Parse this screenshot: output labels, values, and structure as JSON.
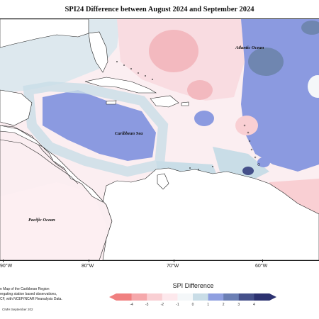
{
  "title": "SPI24 Difference between August 2024 and September 2024",
  "ocean_labels": {
    "atlantic": "Atlantic Ocean",
    "caribbean": "Caribbean Sea",
    "pacific": "Pacific Ocean"
  },
  "longitude_labels": [
    "90°W",
    "80°W",
    "70°W",
    "60°W"
  ],
  "legend": {
    "title": "SPI Difference",
    "ticks": [
      "-4",
      "-3",
      "-2",
      "-1",
      "0",
      "1",
      "2",
      "3",
      "4"
    ],
    "colors": [
      "#f08080",
      "#f5a8ab",
      "#f9cfd3",
      "#fde8ec",
      "#f4f7f9",
      "#c9dde7",
      "#8f9fe0",
      "#6b7fb5",
      "#45508a",
      "#2c3270"
    ]
  },
  "description_lines": [
    "n Map of the Caribbean Region",
    "regating station based observations,",
    "CF, with NCEP/NCAR Reanalysis Data."
  ],
  "copyright": "CIMH September 202"
}
